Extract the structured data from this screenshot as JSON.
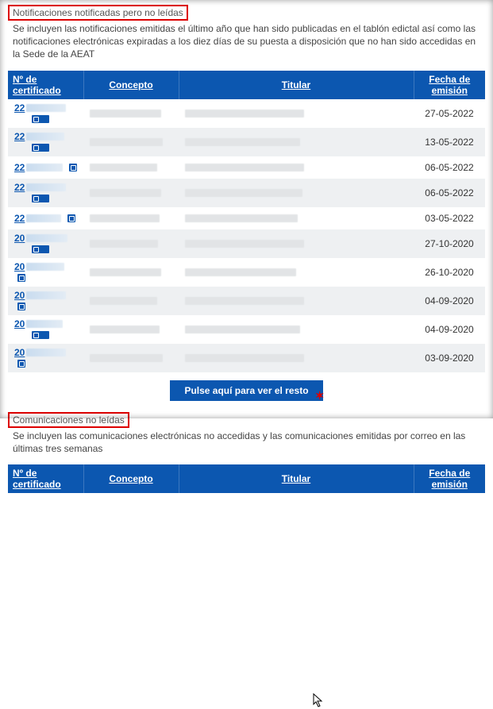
{
  "notif": {
    "title": "Notificaciones notificadas pero no leídas",
    "desc": "Se incluyen las notificaciones emitidas el último año que han sido publicadas en el tablón edictal así como las notificaciones electrónicas expiradas a los diez días de su puesta a disposición que no han sido accedidas en la Sede de la AEAT",
    "headers": {
      "cert": "Nº de certificado",
      "concept": "Concepto",
      "titular": "Titular",
      "fecha": "Fecha de emisión"
    },
    "rows": [
      {
        "cert": "22",
        "fecha": "27-05-2022",
        "cw": 50,
        "xw": 90,
        "tw": 150,
        "sub": true
      },
      {
        "cert": "22",
        "fecha": "13-05-2022",
        "cw": 48,
        "xw": 92,
        "tw": 145,
        "sub": true
      },
      {
        "cert": "22",
        "fecha": "06-05-2022",
        "cw": 46,
        "xw": 85,
        "tw": 150,
        "sub": false
      },
      {
        "cert": "22",
        "fecha": "06-05-2022",
        "cw": 50,
        "xw": 90,
        "tw": 148,
        "sub": true
      },
      {
        "cert": "22",
        "fecha": "03-05-2022",
        "cw": 44,
        "xw": 88,
        "tw": 142,
        "sub": false
      },
      {
        "cert": "20",
        "fecha": "27-10-2020",
        "cw": 52,
        "xw": 86,
        "tw": 150,
        "sub": true
      },
      {
        "cert": "20",
        "fecha": "26-10-2020",
        "cw": 48,
        "xw": 90,
        "tw": 140,
        "sub": false
      },
      {
        "cert": "20",
        "fecha": "04-09-2020",
        "cw": 50,
        "xw": 85,
        "tw": 150,
        "sub": false
      },
      {
        "cert": "20",
        "fecha": "04-09-2020",
        "cw": 46,
        "xw": 88,
        "tw": 145,
        "sub": true
      },
      {
        "cert": "20",
        "fecha": "03-09-2020",
        "cw": 50,
        "xw": 92,
        "tw": 150,
        "sub": false
      }
    ],
    "more_btn": "Pulse aquí para ver el resto"
  },
  "comm": {
    "title": "Comunicaciones no leídas",
    "desc": "Se incluyen las comunicaciones electrónicas no accedidas y las comunicaciones emitidas por correo en las últimas tres semanas",
    "headers": {
      "cert": "Nº de certificado",
      "concept": "Concepto",
      "titular": "Titular",
      "fecha": "Fecha de emisión"
    }
  }
}
